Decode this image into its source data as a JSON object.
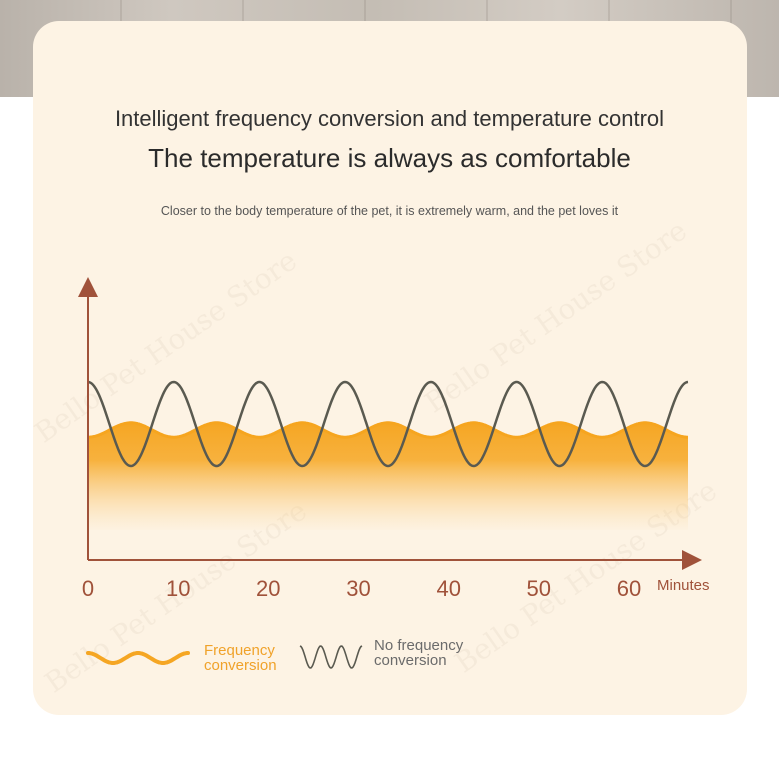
{
  "header": {
    "title": "Intelligent frequency conversion and temperature control",
    "subtitle": "The temperature is always as comfortable",
    "description": "Closer to the body temperature of the pet, it is extremely warm, and the pet loves it"
  },
  "watermark": "Bello Pet House Store",
  "legend": {
    "frequency": "Frequency\nconversion",
    "no_frequency": "No frequency\nconversion"
  },
  "colors": {
    "accent_orange": "#f5a623",
    "axis": "#a0523a",
    "wave_gray": "#5a5a50",
    "card_bg": "#fdf3e4"
  },
  "chart_data": {
    "type": "line",
    "x_tick_labels": [
      "0",
      "10",
      "20",
      "30",
      "40",
      "50",
      "60"
    ],
    "x_unit_label": "Minutes",
    "xlim": [
      0,
      65
    ],
    "series": [
      {
        "name": "Frequency conversion",
        "shape": "small-amplitude wave, filled area",
        "cycles": 7,
        "amplitude": 0.18,
        "baseline": 0.0,
        "color": "#f5a623"
      },
      {
        "name": "No frequency conversion",
        "shape": "large-amplitude sine wave",
        "cycles": 7,
        "amplitude": 1.0,
        "baseline": 0.0,
        "color": "#5a5a50"
      }
    ]
  }
}
